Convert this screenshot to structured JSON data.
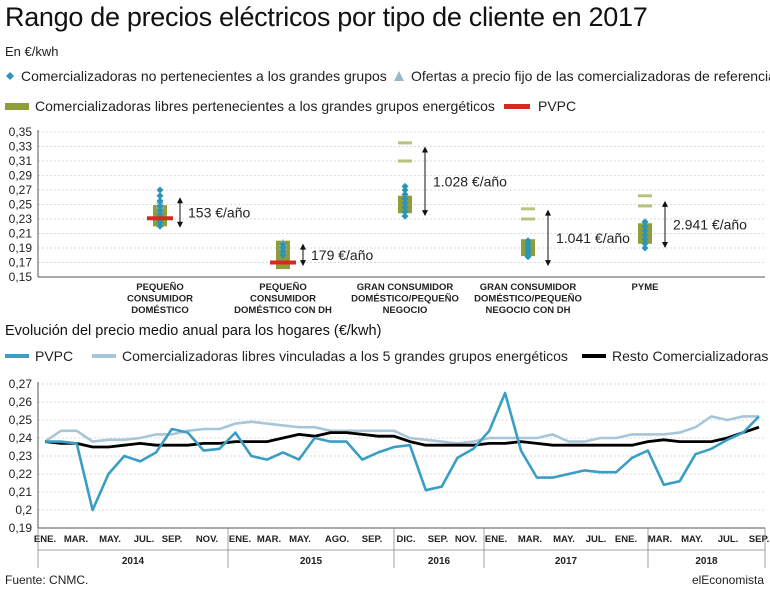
{
  "title": "Rango de precios eléctricos por tipo de cliente en 2017",
  "units": "En €/kwh",
  "legend1": [
    {
      "label": "Comercializadoras no pertenecientes a los grandes grupos",
      "marker": "diamond",
      "color": "#2b95b9"
    },
    {
      "label": "Ofertas a precio fijo de las comercializadoras de referencia",
      "marker": "triangle",
      "color": "#9ab8c8"
    },
    {
      "label": "Comercializadoras libres pertenecientes a los grandes grupos energéticos",
      "marker": "bar",
      "color": "#8f9e3a"
    },
    {
      "label": "PVPC",
      "marker": "bar",
      "color": "#d52b1e"
    }
  ],
  "colors": {
    "diamond": "#2b95b9",
    "triangle": "#9ab8c8",
    "olive": "#8f9e3a",
    "olive_light": "#b9c27a",
    "red": "#d52b1e",
    "pvpc": "#3a9ec4",
    "libres": "#a7c6d8",
    "resto": "#000000"
  },
  "chart_data": [
    {
      "type": "range",
      "yticks": [
        "0,35",
        "0,33",
        "0,31",
        "0,29",
        "0,27",
        "0,25",
        "0,23",
        "0,21",
        "0,19",
        "0,17",
        "0,15"
      ],
      "ylim": [
        0.15,
        0.35
      ],
      "categories": [
        {
          "label": [
            "PEQUEÑO",
            "CONSUMIDOR",
            "DOMÉSTICO"
          ],
          "range_label": "153 €/año",
          "arrow": [
            0.218,
            0.26
          ],
          "diamonds": [
            0.27,
            0.262,
            0.255,
            0.248,
            0.242,
            0.236,
            0.23,
            0.225,
            0.22
          ],
          "triangles": [
            0.255,
            0.25,
            0.246
          ],
          "olive": [
            0.245,
            0.24,
            0.236,
            0.232,
            0.228,
            0.224
          ],
          "olive_light": [],
          "pvpc": 0.231
        },
        {
          "label": [
            "PEQUEÑO",
            "CONSUMIDOR",
            "DOMÉSTICO CON DH"
          ],
          "range_label": "179 €/año",
          "arrow": [
            0.165,
            0.196
          ],
          "diamonds": [
            0.195,
            0.19,
            0.185,
            0.18
          ],
          "triangles": [
            0.197,
            0.192
          ],
          "olive": [
            0.196,
            0.19,
            0.185,
            0.18,
            0.176,
            0.172,
            0.168,
            0.165
          ],
          "olive_light": [],
          "pvpc": 0.17
        },
        {
          "label": [
            "GRAN CONSUMIDOR",
            "DOMÉSTICO/PEQUEÑO",
            "NEGOCIO"
          ],
          "range_label": "1.028 €/año",
          "arrow": [
            0.234,
            0.33
          ],
          "diamonds": [
            0.275,
            0.27,
            0.264,
            0.258,
            0.252,
            0.246,
            0.24,
            0.234
          ],
          "triangles": [],
          "olive": [
            0.258,
            0.254,
            0.25,
            0.246,
            0.242
          ],
          "olive_light": [
            0.335,
            0.31
          ],
          "pvpc": null
        },
        {
          "label": [
            "GRAN CONSUMIDOR",
            "DOMÉSTICO/PEQUEÑO",
            "NEGOCIO CON DH"
          ],
          "range_label": "1.041 €/año",
          "arrow": [
            0.165,
            0.243
          ],
          "diamonds": [
            0.2,
            0.195,
            0.19,
            0.186,
            0.182,
            0.178
          ],
          "triangles": [],
          "olive": [
            0.198,
            0.194,
            0.19,
            0.186,
            0.183
          ],
          "olive_light": [
            0.244,
            0.23
          ],
          "pvpc": null
        },
        {
          "label": [
            "PYME"
          ],
          "range_label": "2.941 €/año",
          "arrow": [
            0.19,
            0.255
          ],
          "diamonds": [
            0.226,
            0.22,
            0.214,
            0.208,
            0.202,
            0.196,
            0.19
          ],
          "triangles": [],
          "olive": [
            0.22,
            0.215,
            0.21,
            0.205,
            0.2
          ],
          "olive_light": [
            0.262,
            0.248
          ],
          "pvpc": null
        }
      ]
    },
    {
      "type": "line",
      "title": "Evolución del precio medio anual para los hogares (€/kwh)",
      "yticks": [
        "0,27",
        "0,26",
        "0,25",
        "0,24",
        "0,23",
        "0,22",
        "0,21",
        "0,2",
        "0,19"
      ],
      "ylim": [
        0.19,
        0.27
      ],
      "x_labels": [
        "ENE.",
        "MAR.",
        "MAY.",
        "JUL.",
        "SEP.",
        "NOV.",
        "ENE.",
        "MAR.",
        "MAY.",
        "AGO.",
        "SEP.",
        "DIC.",
        "SEP.",
        "NOV.",
        "ENE.",
        "MAR.",
        "MAY.",
        "JUL.",
        "ENE.",
        "MAR.",
        "MAY.",
        "JUL.",
        "SEP."
      ],
      "years": [
        "2014",
        "2015",
        "2016",
        "2017",
        "2018"
      ],
      "series": [
        {
          "name": "PVPC",
          "color": "#3a9ec4",
          "values": [
            0.238,
            0.238,
            0.237,
            0.2,
            0.22,
            0.23,
            0.227,
            0.232,
            0.245,
            0.243,
            0.233,
            0.234,
            0.243,
            0.23,
            0.228,
            0.232,
            0.228,
            0.24,
            0.238,
            0.238,
            0.228,
            0.232,
            0.235,
            0.236,
            0.211,
            0.213,
            0.229,
            0.234,
            0.244,
            0.265,
            0.233,
            0.218,
            0.218,
            0.22,
            0.222,
            0.221,
            0.221,
            0.229,
            0.233,
            0.214,
            0.216,
            0.231,
            0.234,
            0.239,
            0.243,
            0.252
          ]
        },
        {
          "name": "Comercializadoras libres vinculadas a los 5 grandes grupos energéticos",
          "color": "#a7c6d8",
          "values": [
            0.238,
            0.244,
            0.244,
            0.238,
            0.239,
            0.239,
            0.24,
            0.242,
            0.242,
            0.244,
            0.245,
            0.245,
            0.248,
            0.249,
            0.248,
            0.247,
            0.246,
            0.246,
            0.244,
            0.244,
            0.244,
            0.244,
            0.244,
            0.24,
            0.239,
            0.238,
            0.237,
            0.238,
            0.24,
            0.24,
            0.24,
            0.24,
            0.242,
            0.238,
            0.238,
            0.24,
            0.24,
            0.242,
            0.242,
            0.242,
            0.243,
            0.246,
            0.252,
            0.25,
            0.252,
            0.252
          ]
        },
        {
          "name": "Resto Comercializadoras",
          "color": "#000000",
          "values": [
            0.238,
            0.237,
            0.237,
            0.235,
            0.235,
            0.236,
            0.237,
            0.236,
            0.236,
            0.236,
            0.237,
            0.237,
            0.238,
            0.238,
            0.238,
            0.24,
            0.242,
            0.241,
            0.243,
            0.243,
            0.242,
            0.241,
            0.241,
            0.238,
            0.236,
            0.236,
            0.236,
            0.236,
            0.237,
            0.237,
            0.238,
            0.237,
            0.236,
            0.236,
            0.236,
            0.236,
            0.236,
            0.236,
            0.238,
            0.239,
            0.238,
            0.238,
            0.238,
            0.24,
            0.243,
            0.246
          ]
        }
      ]
    }
  ],
  "source": "Fuente: CNMC.",
  "brand": "elEconomista"
}
